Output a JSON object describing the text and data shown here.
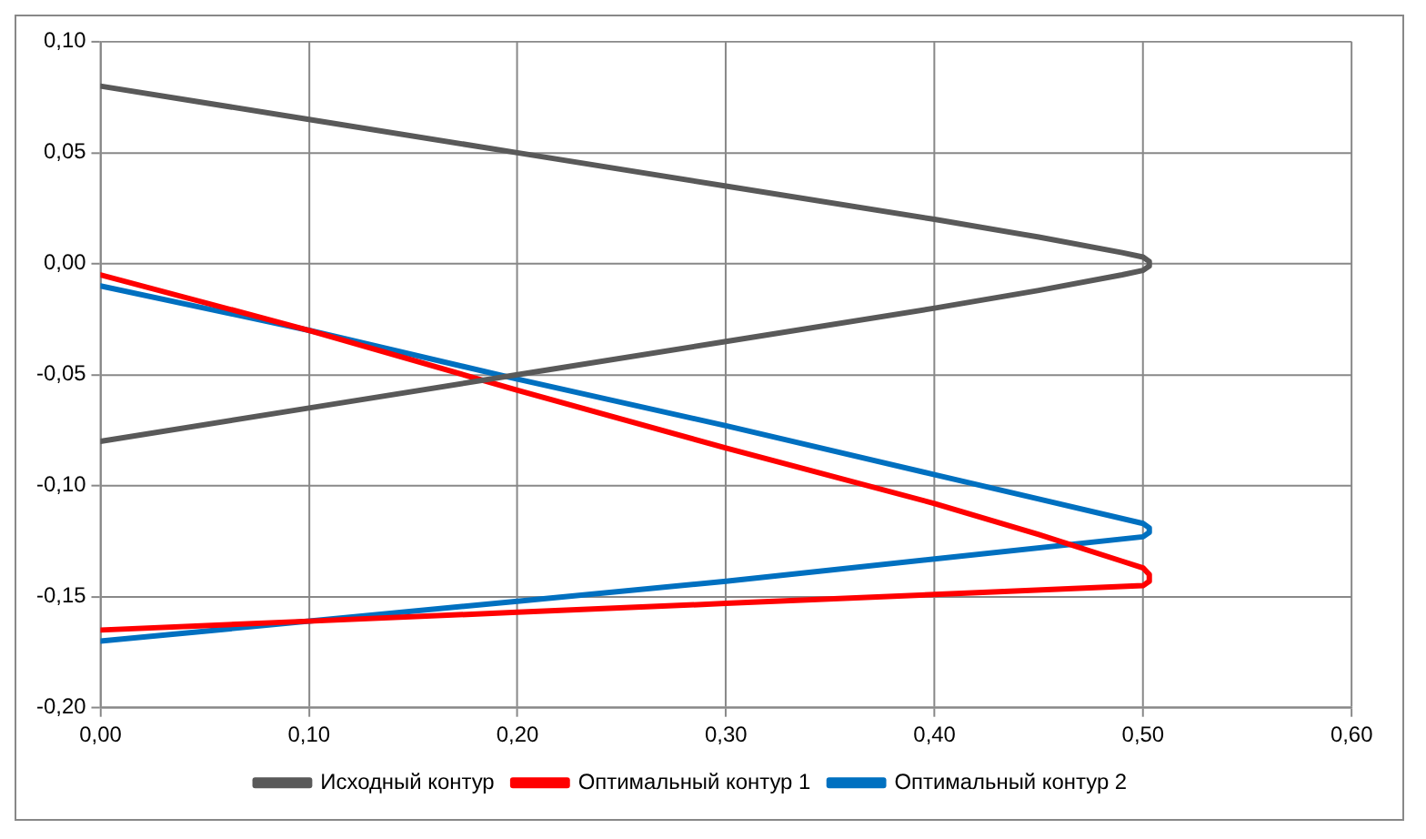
{
  "chart_data": {
    "type": "line",
    "series": [
      {
        "name": "Исходный контур",
        "color": "#595959",
        "x": [
          0,
          0.1,
          0.2,
          0.3,
          0.4,
          0.45,
          0.49,
          0.5,
          0.503,
          0.503,
          0.5,
          0.49,
          0.45,
          0.4,
          0.3,
          0.2,
          0.1,
          0
        ],
        "values": [
          0.08,
          0.065,
          0.05,
          0.035,
          0.02,
          0.012,
          0.005,
          0.003,
          0.001,
          -0.001,
          -0.003,
          -0.005,
          -0.012,
          -0.02,
          -0.035,
          -0.05,
          -0.065,
          -0.08
        ]
      },
      {
        "name": "Оптимальный контур 1",
        "color": "#ff0000",
        "x": [
          0,
          0.1,
          0.2,
          0.3,
          0.4,
          0.45,
          0.49,
          0.5,
          0.503,
          0.503,
          0.5,
          0.4,
          0.3,
          0.2,
          0.1,
          0
        ],
        "values": [
          -0.005,
          -0.03,
          -0.057,
          -0.083,
          -0.108,
          -0.122,
          -0.134,
          -0.137,
          -0.14,
          -0.143,
          -0.145,
          -0.149,
          -0.153,
          -0.157,
          -0.161,
          -0.165
        ]
      },
      {
        "name": "Оптимальный контур 2",
        "color": "#0070c0",
        "x": [
          0,
          0.1,
          0.2,
          0.3,
          0.4,
          0.45,
          0.5,
          0.503,
          0.503,
          0.5,
          0.4,
          0.3,
          0.2,
          0
        ],
        "values": [
          -0.01,
          -0.03,
          -0.052,
          -0.073,
          -0.095,
          -0.106,
          -0.117,
          -0.119,
          -0.121,
          -0.123,
          -0.133,
          -0.143,
          -0.152,
          -0.17
        ]
      }
    ],
    "xlim": [
      0,
      0.6
    ],
    "xticks": [
      {
        "value": 0,
        "label": "0,00"
      },
      {
        "value": 0.1,
        "label": "0,10"
      },
      {
        "value": 0.2,
        "label": "0,20"
      },
      {
        "value": 0.3,
        "label": "0,30"
      },
      {
        "value": 0.4,
        "label": "0,40"
      },
      {
        "value": 0.5,
        "label": "0,50"
      },
      {
        "value": 0.6,
        "label": "0,60"
      }
    ],
    "ylim": [
      -0.2,
      0.1
    ],
    "yticks": [
      {
        "value": -0.2,
        "label": "-0,20"
      },
      {
        "value": -0.15,
        "label": "-0,15"
      },
      {
        "value": -0.1,
        "label": "-0,10"
      },
      {
        "value": -0.05,
        "label": "-0,05"
      },
      {
        "value": 0,
        "label": "0,00"
      },
      {
        "value": 0.05,
        "label": "0,05"
      },
      {
        "value": 0.1,
        "label": "0,10"
      }
    ],
    "grid": true,
    "legend": "bottom",
    "marker": "none",
    "line_style": "solid"
  }
}
